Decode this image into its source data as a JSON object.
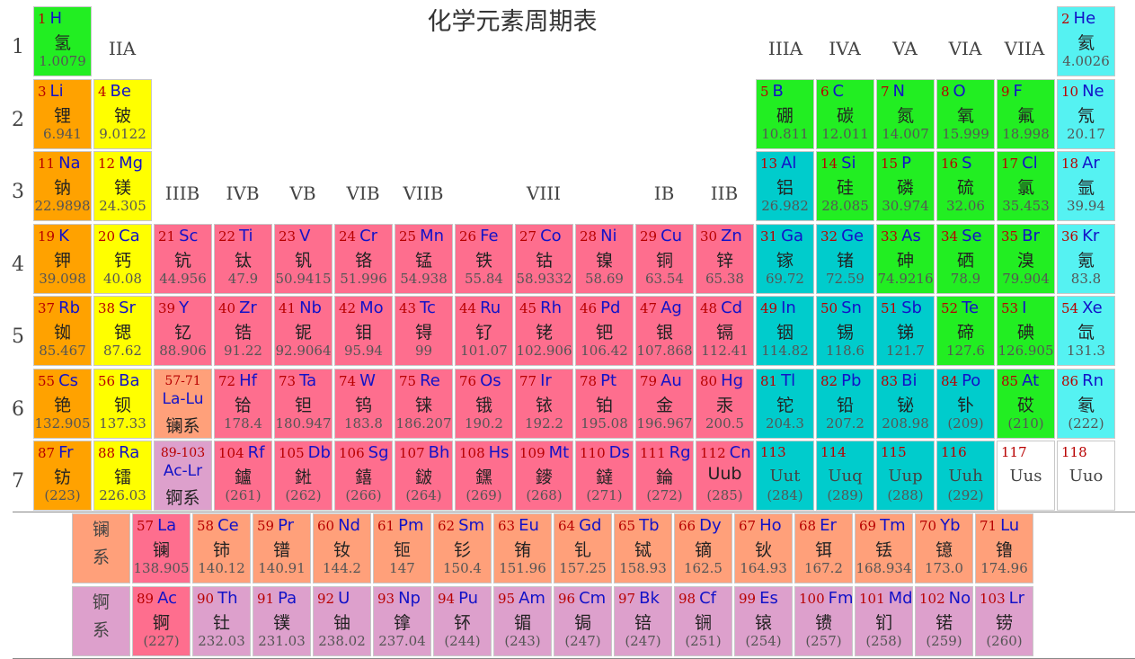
{
  "title": "化学元素周期表",
  "periods": [
    "1",
    "2",
    "3",
    "4",
    "5",
    "6",
    "7"
  ],
  "groups": {
    "IIA": "IIA",
    "IIIA": "IIIA",
    "IVA": "IVA",
    "VA": "VA",
    "VIA": "VIA",
    "VIIA": "VIIA",
    "IIIB": "IIIB",
    "IVB": "IVB",
    "VB": "VB",
    "VIB": "VIB",
    "VIIB": "VIIB",
    "VIII": "VIII",
    "IB": "IB",
    "IIB": "IIB"
  },
  "colors": {
    "nonmetal": "#22ee22",
    "noble": "#55f2f2",
    "alkali": "#ffa200",
    "alkaline": "#ffff00",
    "transition": "#fe6e8e",
    "poor": "#00cccc",
    "lanact": "#ffa07a",
    "actinide": "#dda0cc",
    "unknown": "#ffffff"
  },
  "elements": [
    {
      "n": "1",
      "s": "H",
      "c": "氢",
      "m": "1.0079",
      "t": "nonmetal",
      "r": 1,
      "g": 1
    },
    {
      "n": "2",
      "s": "He",
      "c": "氦",
      "m": "4.0026",
      "t": "noble",
      "r": 1,
      "g": 18
    },
    {
      "n": "3",
      "s": "Li",
      "c": "锂",
      "m": "6.941",
      "t": "alkali",
      "r": 2,
      "g": 1
    },
    {
      "n": "4",
      "s": "Be",
      "c": "铍",
      "m": "9.0122",
      "t": "alkaline",
      "r": 2,
      "g": 2
    },
    {
      "n": "5",
      "s": "B",
      "c": "硼",
      "m": "10.811",
      "t": "nonmetal",
      "r": 2,
      "g": 13
    },
    {
      "n": "6",
      "s": "C",
      "c": "碳",
      "m": "12.011",
      "t": "nonmetal",
      "r": 2,
      "g": 14
    },
    {
      "n": "7",
      "s": "N",
      "c": "氮",
      "m": "14.007",
      "t": "nonmetal",
      "r": 2,
      "g": 15
    },
    {
      "n": "8",
      "s": "O",
      "c": "氧",
      "m": "15.999",
      "t": "nonmetal",
      "r": 2,
      "g": 16
    },
    {
      "n": "9",
      "s": "F",
      "c": "氟",
      "m": "18.998",
      "t": "nonmetal",
      "r": 2,
      "g": 17
    },
    {
      "n": "10",
      "s": "Ne",
      "c": "氖",
      "m": "20.17",
      "t": "noble",
      "r": 2,
      "g": 18
    },
    {
      "n": "11",
      "s": "Na",
      "c": "钠",
      "m": "22.9898",
      "t": "alkali",
      "r": 3,
      "g": 1
    },
    {
      "n": "12",
      "s": "Mg",
      "c": "镁",
      "m": "24.305",
      "t": "alkaline",
      "r": 3,
      "g": 2
    },
    {
      "n": "13",
      "s": "Al",
      "c": "铝",
      "m": "26.982",
      "t": "poor",
      "r": 3,
      "g": 13
    },
    {
      "n": "14",
      "s": "Si",
      "c": "硅",
      "m": "28.085",
      "t": "nonmetal",
      "r": 3,
      "g": 14
    },
    {
      "n": "15",
      "s": "P",
      "c": "磷",
      "m": "30.974",
      "t": "nonmetal",
      "r": 3,
      "g": 15
    },
    {
      "n": "16",
      "s": "S",
      "c": "硫",
      "m": "32.06",
      "t": "nonmetal",
      "r": 3,
      "g": 16
    },
    {
      "n": "17",
      "s": "Cl",
      "c": "氯",
      "m": "35.453",
      "t": "nonmetal",
      "r": 3,
      "g": 17
    },
    {
      "n": "18",
      "s": "Ar",
      "c": "氩",
      "m": "39.94",
      "t": "noble",
      "r": 3,
      "g": 18
    },
    {
      "n": "19",
      "s": "K",
      "c": "钾",
      "m": "39.098",
      "t": "alkali",
      "r": 4,
      "g": 1
    },
    {
      "n": "20",
      "s": "Ca",
      "c": "钙",
      "m": "40.08",
      "t": "alkaline",
      "r": 4,
      "g": 2
    },
    {
      "n": "21",
      "s": "Sc",
      "c": "钪",
      "m": "44.956",
      "t": "transition",
      "r": 4,
      "g": 3
    },
    {
      "n": "22",
      "s": "Ti",
      "c": "钛",
      "m": "47.9",
      "t": "transition",
      "r": 4,
      "g": 4
    },
    {
      "n": "23",
      "s": "V",
      "c": "钒",
      "m": "50.9415",
      "t": "transition",
      "r": 4,
      "g": 5
    },
    {
      "n": "24",
      "s": "Cr",
      "c": "铬",
      "m": "51.996",
      "t": "transition",
      "r": 4,
      "g": 6
    },
    {
      "n": "25",
      "s": "Mn",
      "c": "锰",
      "m": "54.938",
      "t": "transition",
      "r": 4,
      "g": 7
    },
    {
      "n": "26",
      "s": "Fe",
      "c": "铁",
      "m": "55.84",
      "t": "transition",
      "r": 4,
      "g": 8
    },
    {
      "n": "27",
      "s": "Co",
      "c": "钴",
      "m": "58.9332",
      "t": "transition",
      "r": 4,
      "g": 9
    },
    {
      "n": "28",
      "s": "Ni",
      "c": "镍",
      "m": "58.69",
      "t": "transition",
      "r": 4,
      "g": 10
    },
    {
      "n": "29",
      "s": "Cu",
      "c": "铜",
      "m": "63.54",
      "t": "transition",
      "r": 4,
      "g": 11
    },
    {
      "n": "30",
      "s": "Zn",
      "c": "锌",
      "m": "65.38",
      "t": "transition",
      "r": 4,
      "g": 12
    },
    {
      "n": "31",
      "s": "Ga",
      "c": "镓",
      "m": "69.72",
      "t": "poor",
      "r": 4,
      "g": 13
    },
    {
      "n": "32",
      "s": "Ge",
      "c": "锗",
      "m": "72.59",
      "t": "poor",
      "r": 4,
      "g": 14
    },
    {
      "n": "33",
      "s": "As",
      "c": "砷",
      "m": "74.9216",
      "t": "nonmetal",
      "r": 4,
      "g": 15
    },
    {
      "n": "34",
      "s": "Se",
      "c": "硒",
      "m": "78.9",
      "t": "nonmetal",
      "r": 4,
      "g": 16
    },
    {
      "n": "35",
      "s": "Br",
      "c": "溴",
      "m": "79.904",
      "t": "nonmetal",
      "r": 4,
      "g": 17
    },
    {
      "n": "36",
      "s": "Kr",
      "c": "氪",
      "m": "83.8",
      "t": "noble",
      "r": 4,
      "g": 18
    },
    {
      "n": "37",
      "s": "Rb",
      "c": "铷",
      "m": "85.467",
      "t": "alkali",
      "r": 5,
      "g": 1
    },
    {
      "n": "38",
      "s": "Sr",
      "c": "锶",
      "m": "87.62",
      "t": "alkaline",
      "r": 5,
      "g": 2
    },
    {
      "n": "39",
      "s": "Y",
      "c": "钇",
      "m": "88.906",
      "t": "transition",
      "r": 5,
      "g": 3
    },
    {
      "n": "40",
      "s": "Zr",
      "c": "锆",
      "m": "91.22",
      "t": "transition",
      "r": 5,
      "g": 4
    },
    {
      "n": "41",
      "s": "Nb",
      "c": "铌",
      "m": "92.9064",
      "t": "transition",
      "r": 5,
      "g": 5
    },
    {
      "n": "42",
      "s": "Mo",
      "c": "钼",
      "m": "95.94",
      "t": "transition",
      "r": 5,
      "g": 6
    },
    {
      "n": "43",
      "s": "Tc",
      "c": "锝",
      "m": "99",
      "t": "transition",
      "r": 5,
      "g": 7
    },
    {
      "n": "44",
      "s": "Ru",
      "c": "钌",
      "m": "101.07",
      "t": "transition",
      "r": 5,
      "g": 8
    },
    {
      "n": "45",
      "s": "Rh",
      "c": "铑",
      "m": "102.906",
      "t": "transition",
      "r": 5,
      "g": 9
    },
    {
      "n": "46",
      "s": "Pd",
      "c": "钯",
      "m": "106.42",
      "t": "transition",
      "r": 5,
      "g": 10
    },
    {
      "n": "47",
      "s": "Ag",
      "c": "银",
      "m": "107.868",
      "t": "transition",
      "r": 5,
      "g": 11
    },
    {
      "n": "48",
      "s": "Cd",
      "c": "镉",
      "m": "112.41",
      "t": "transition",
      "r": 5,
      "g": 12
    },
    {
      "n": "49",
      "s": "In",
      "c": "铟",
      "m": "114.82",
      "t": "poor",
      "r": 5,
      "g": 13
    },
    {
      "n": "50",
      "s": "Sn",
      "c": "锡",
      "m": "118.6",
      "t": "poor",
      "r": 5,
      "g": 14
    },
    {
      "n": "51",
      "s": "Sb",
      "c": "锑",
      "m": "121.7",
      "t": "poor",
      "r": 5,
      "g": 15
    },
    {
      "n": "52",
      "s": "Te",
      "c": "碲",
      "m": "127.6",
      "t": "nonmetal",
      "r": 5,
      "g": 16
    },
    {
      "n": "53",
      "s": "I",
      "c": "碘",
      "m": "126.905",
      "t": "nonmetal",
      "r": 5,
      "g": 17
    },
    {
      "n": "54",
      "s": "Xe",
      "c": "氙",
      "m": "131.3",
      "t": "noble",
      "r": 5,
      "g": 18
    },
    {
      "n": "55",
      "s": "Cs",
      "c": "铯",
      "m": "132.905",
      "t": "alkali",
      "r": 6,
      "g": 1
    },
    {
      "n": "56",
      "s": "Ba",
      "c": "钡",
      "m": "137.33",
      "t": "alkaline",
      "r": 6,
      "g": 2
    },
    {
      "n": "72",
      "s": "Hf",
      "c": "铪",
      "m": "178.4",
      "t": "transition",
      "r": 6,
      "g": 4
    },
    {
      "n": "73",
      "s": "Ta",
      "c": "钽",
      "m": "180.947",
      "t": "transition",
      "r": 6,
      "g": 5
    },
    {
      "n": "74",
      "s": "W",
      "c": "钨",
      "m": "183.8",
      "t": "transition",
      "r": 6,
      "g": 6
    },
    {
      "n": "75",
      "s": "Re",
      "c": "铼",
      "m": "186.207",
      "t": "transition",
      "r": 6,
      "g": 7
    },
    {
      "n": "76",
      "s": "Os",
      "c": "锇",
      "m": "190.2",
      "t": "transition",
      "r": 6,
      "g": 8
    },
    {
      "n": "77",
      "s": "Ir",
      "c": "铱",
      "m": "192.2",
      "t": "transition",
      "r": 6,
      "g": 9
    },
    {
      "n": "78",
      "s": "Pt",
      "c": "铂",
      "m": "195.08",
      "t": "transition",
      "r": 6,
      "g": 10
    },
    {
      "n": "79",
      "s": "Au",
      "c": "金",
      "m": "196.967",
      "t": "transition",
      "r": 6,
      "g": 11
    },
    {
      "n": "80",
      "s": "Hg",
      "c": "汞",
      "m": "200.5",
      "t": "transition",
      "r": 6,
      "g": 12
    },
    {
      "n": "81",
      "s": "Tl",
      "c": "铊",
      "m": "204.3",
      "t": "poor",
      "r": 6,
      "g": 13
    },
    {
      "n": "82",
      "s": "Pb",
      "c": "铅",
      "m": "207.2",
      "t": "poor",
      "r": 6,
      "g": 14
    },
    {
      "n": "83",
      "s": "Bi",
      "c": "铋",
      "m": "208.98",
      "t": "poor",
      "r": 6,
      "g": 15
    },
    {
      "n": "84",
      "s": "Po",
      "c": "钋",
      "m": "(209)",
      "t": "poor",
      "r": 6,
      "g": 16
    },
    {
      "n": "85",
      "s": "At",
      "c": "砹",
      "m": "(210)",
      "t": "nonmetal",
      "r": 6,
      "g": 17
    },
    {
      "n": "86",
      "s": "Rn",
      "c": "氡",
      "m": "(222)",
      "t": "noble",
      "r": 6,
      "g": 18
    },
    {
      "n": "87",
      "s": "Fr",
      "c": "钫",
      "m": "(223)",
      "t": "alkali",
      "r": 7,
      "g": 1
    },
    {
      "n": "88",
      "s": "Ra",
      "c": "镭",
      "m": "226.03",
      "t": "alkaline",
      "r": 7,
      "g": 2
    },
    {
      "n": "104",
      "s": "Rf",
      "c": "鑪",
      "m": "(261)",
      "t": "transition",
      "r": 7,
      "g": 4
    },
    {
      "n": "105",
      "s": "Db",
      "c": "𨧀",
      "m": "(262)",
      "t": "transition",
      "r": 7,
      "g": 5
    },
    {
      "n": "106",
      "s": "Sg",
      "c": "𨭎",
      "m": "(266)",
      "t": "transition",
      "r": 7,
      "g": 6
    },
    {
      "n": "107",
      "s": "Bh",
      "c": "𨨏",
      "m": "(264)",
      "t": "transition",
      "r": 7,
      "g": 7
    },
    {
      "n": "108",
      "s": "Hs",
      "c": "𨭆",
      "m": "(269)",
      "t": "transition",
      "r": 7,
      "g": 8
    },
    {
      "n": "109",
      "s": "Mt",
      "c": "䥑",
      "m": "(268)",
      "t": "transition",
      "r": 7,
      "g": 9
    },
    {
      "n": "110",
      "s": "Ds",
      "c": "鐽",
      "m": "(271)",
      "t": "transition",
      "r": 7,
      "g": 10
    },
    {
      "n": "111",
      "s": "Rg",
      "c": "錀",
      "m": "(272)",
      "t": "transition",
      "r": 7,
      "g": 11
    },
    {
      "n": "112",
      "s": "Cn",
      "c": "Uub",
      "m": "(285)",
      "t": "transition",
      "r": 7,
      "g": 12
    },
    {
      "n": "113",
      "s": "",
      "c": "Uut",
      "m": "(284)",
      "t": "poor",
      "r": 7,
      "g": 13
    },
    {
      "n": "114",
      "s": "",
      "c": "Uuq",
      "m": "(289)",
      "t": "poor",
      "r": 7,
      "g": 14
    },
    {
      "n": "115",
      "s": "",
      "c": "Uup",
      "m": "(288)",
      "t": "poor",
      "r": 7,
      "g": 15
    },
    {
      "n": "116",
      "s": "",
      "c": "Uuh",
      "m": "(292)",
      "t": "poor",
      "r": 7,
      "g": 16
    },
    {
      "n": "117",
      "s": "",
      "c": "Uus",
      "m": "",
      "t": "unknown",
      "r": 7,
      "g": 17
    },
    {
      "n": "118",
      "s": "",
      "c": "Uuo",
      "m": "",
      "t": "unknown",
      "r": 7,
      "g": 18
    }
  ],
  "placeholders": [
    {
      "n": "57-71",
      "s": "La-Lu",
      "c": "镧系",
      "t": "lanact",
      "r": 6,
      "g": 3
    },
    {
      "n": "89-103",
      "s": "Ac-Lr",
      "c": "锕系",
      "t": "actinide",
      "r": 7,
      "g": 3
    }
  ],
  "series": [
    {
      "a": "镧",
      "b": "系",
      "t": "lanact"
    },
    {
      "a": "锕",
      "b": "系",
      "t": "actinide"
    }
  ],
  "lanthanides": [
    {
      "n": "57",
      "s": "La",
      "c": "镧",
      "m": "138.905",
      "t": "transition"
    },
    {
      "n": "58",
      "s": "Ce",
      "c": "铈",
      "m": "140.12",
      "t": "lanact"
    },
    {
      "n": "59",
      "s": "Pr",
      "c": "镨",
      "m": "140.91",
      "t": "lanact"
    },
    {
      "n": "60",
      "s": "Nd",
      "c": "钕",
      "m": "144.2",
      "t": "lanact"
    },
    {
      "n": "61",
      "s": "Pm",
      "c": "钷",
      "m": "147",
      "t": "lanact"
    },
    {
      "n": "62",
      "s": "Sm",
      "c": "钐",
      "m": "150.4",
      "t": "lanact"
    },
    {
      "n": "63",
      "s": "Eu",
      "c": "铕",
      "m": "151.96",
      "t": "lanact"
    },
    {
      "n": "64",
      "s": "Gd",
      "c": "钆",
      "m": "157.25",
      "t": "lanact"
    },
    {
      "n": "65",
      "s": "Tb",
      "c": "铽",
      "m": "158.93",
      "t": "lanact"
    },
    {
      "n": "66",
      "s": "Dy",
      "c": "镝",
      "m": "162.5",
      "t": "lanact"
    },
    {
      "n": "67",
      "s": "Ho",
      "c": "钬",
      "m": "164.93",
      "t": "lanact"
    },
    {
      "n": "68",
      "s": "Er",
      "c": "铒",
      "m": "167.2",
      "t": "lanact"
    },
    {
      "n": "69",
      "s": "Tm",
      "c": "铥",
      "m": "168.934",
      "t": "lanact"
    },
    {
      "n": "70",
      "s": "Yb",
      "c": "镱",
      "m": "173.0",
      "t": "lanact"
    },
    {
      "n": "71",
      "s": "Lu",
      "c": "镥",
      "m": "174.96",
      "t": "lanact"
    }
  ],
  "actinides": [
    {
      "n": "89",
      "s": "Ac",
      "c": "锕",
      "m": "(227)",
      "t": "transition"
    },
    {
      "n": "90",
      "s": "Th",
      "c": "钍",
      "m": "232.03",
      "t": "actinide"
    },
    {
      "n": "91",
      "s": "Pa",
      "c": "镤",
      "m": "231.03",
      "t": "actinide"
    },
    {
      "n": "92",
      "s": "U",
      "c": "铀",
      "m": "238.02",
      "t": "actinide"
    },
    {
      "n": "93",
      "s": "Np",
      "c": "镎",
      "m": "237.04",
      "t": "actinide"
    },
    {
      "n": "94",
      "s": "Pu",
      "c": "钚",
      "m": "(244)",
      "t": "actinide"
    },
    {
      "n": "95",
      "s": "Am",
      "c": "镅",
      "m": "(243)",
      "t": "actinide"
    },
    {
      "n": "96",
      "s": "Cm",
      "c": "锔",
      "m": "(247)",
      "t": "actinide"
    },
    {
      "n": "97",
      "s": "Bk",
      "c": "锫",
      "m": "(247)",
      "t": "actinide"
    },
    {
      "n": "98",
      "s": "Cf",
      "c": "锎",
      "m": "(251)",
      "t": "actinide"
    },
    {
      "n": "99",
      "s": "Es",
      "c": "锿",
      "m": "(254)",
      "t": "actinide"
    },
    {
      "n": "100",
      "s": "Fm",
      "c": "镄",
      "m": "(257)",
      "t": "actinide"
    },
    {
      "n": "101",
      "s": "Md",
      "c": "钔",
      "m": "(258)",
      "t": "actinide"
    },
    {
      "n": "102",
      "s": "No",
      "c": "锘",
      "m": "(259)",
      "t": "actinide"
    },
    {
      "n": "103",
      "s": "Lr",
      "c": "铹",
      "m": "(260)",
      "t": "actinide"
    }
  ]
}
